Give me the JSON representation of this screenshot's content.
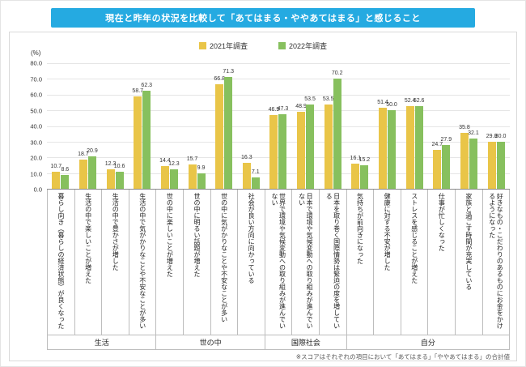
{
  "title": "現在と昨年の状況を比較して「あてはまる・ややあてはまる」と感じること",
  "footnote": "※スコアはそれぞれの項目において「あてはまる」「ややあてはまる」の合計値",
  "chart_data": {
    "type": "bar",
    "unit_label": "(%)",
    "ylim": [
      0,
      80
    ],
    "yticks": [
      "80.0",
      "70.0",
      "60.0",
      "50.0",
      "40.0",
      "30.0",
      "20.0",
      "10.0",
      "0.0"
    ],
    "legend": [
      {
        "name": "2021年調査",
        "color": "#e9c548"
      },
      {
        "name": "2022年調査",
        "color": "#87c05e"
      }
    ],
    "categories": [
      "暮らし向き（暮らしの経済状態）が良くなった",
      "生活の中で楽しいことが増えた",
      "生活の中で豊かさが増した",
      "生活の中で気がかりなことや不安なことが多い",
      "世の中に楽しいことが増えた",
      "世の中に明るい話題が増えた",
      "世の中に気がかりなことや不安なことが多い",
      "社会が良い方向に向かっている",
      "世界で環境や気候変動への取り組みが進んでいない",
      "日本で環境や気候変動への取り組みが進んでいない",
      "日本を取り巻く国際情勢は緊迫の度を増している",
      "気持ちが前向きになった",
      "健康に対する不安が増した",
      "ストレスを感じることが増えた",
      "仕事が忙しくなった",
      "家族と過ごす時間が充実している",
      "好きなもの・こだわりのあるものにお金をかけるようになった"
    ],
    "series": [
      {
        "name": "2021年調査",
        "values": [
          10.7,
          18.7,
          12.3,
          58.7,
          14.4,
          15.7,
          66.8,
          16.3,
          46.9,
          48.9,
          53.5,
          16.1,
          51.4,
          52.4,
          24.7,
          35.8,
          29.8
        ]
      },
      {
        "name": "2022年調査",
        "values": [
          8.6,
          20.9,
          10.6,
          62.3,
          12.3,
          9.9,
          71.3,
          7.1,
          47.3,
          53.5,
          70.2,
          15.2,
          50.0,
          52.6,
          27.9,
          32.1,
          30.0
        ]
      }
    ],
    "groups": [
      {
        "label": "生活",
        "span": 4
      },
      {
        "label": "世の中",
        "span": 4
      },
      {
        "label": "国際社会",
        "span": 3
      },
      {
        "label": "自分",
        "span": 6
      }
    ]
  }
}
